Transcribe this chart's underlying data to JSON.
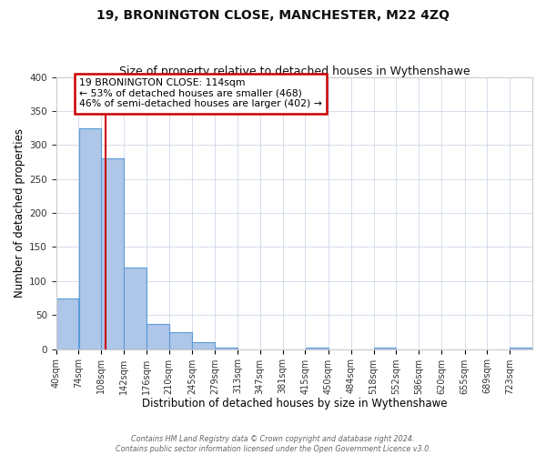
{
  "title": "19, BRONINGTON CLOSE, MANCHESTER, M22 4ZQ",
  "subtitle": "Size of property relative to detached houses in Wythenshawe",
  "xlabel": "Distribution of detached houses by size in Wythenshawe",
  "ylabel": "Number of detached properties",
  "bar_edges": [
    40,
    74,
    108,
    142,
    176,
    210,
    245,
    279,
    313,
    347,
    381,
    415,
    450,
    484,
    518,
    552,
    586,
    620,
    655,
    689,
    723
  ],
  "bar_heights": [
    75,
    325,
    280,
    120,
    37,
    25,
    10,
    2,
    0,
    0,
    0,
    2,
    0,
    0,
    2,
    0,
    0,
    0,
    0,
    0,
    2
  ],
  "bar_color": "#aec6e8",
  "bar_edgecolor": "#5b9bd5",
  "bar_linewidth": 0.8,
  "property_line_x": 114,
  "property_line_color": "#cc0000",
  "ylim": [
    0,
    400
  ],
  "yticks": [
    0,
    50,
    100,
    150,
    200,
    250,
    300,
    350,
    400
  ],
  "annotation_text": "19 BRONINGTON CLOSE: 114sqm\n← 53% of detached houses are smaller (468)\n46% of semi-detached houses are larger (402) →",
  "annotation_box_color": "#cc0000",
  "annotation_text_color": "#000000",
  "footer_line1": "Contains HM Land Registry data © Crown copyright and database right 2024.",
  "footer_line2": "Contains public sector information licensed under the Open Government Licence v3.0.",
  "title_fontsize": 10,
  "subtitle_fontsize": 9,
  "axis_label_fontsize": 8.5,
  "tick_label_fontsize": 7,
  "annotation_fontsize": 7.8,
  "footer_fontsize": 5.8,
  "background_color": "#ffffff",
  "grid_color": "#d0d8e8",
  "tick_label_color": "#333333"
}
